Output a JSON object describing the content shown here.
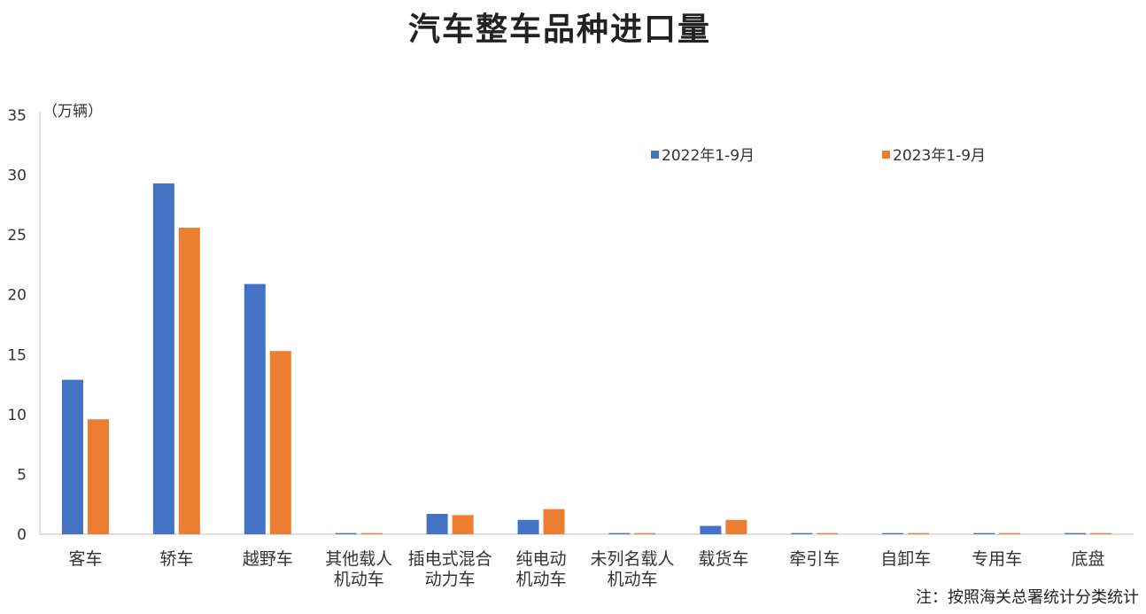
{
  "chart_data": {
    "type": "bar",
    "title": "汽车整车品种进口量",
    "ylabel": "（万辆）",
    "ylim": [
      0,
      35
    ],
    "yticks": [
      0,
      5,
      10,
      15,
      20,
      25,
      30,
      35
    ],
    "grid": false,
    "legend_position": "top-right",
    "categories": [
      [
        "客车"
      ],
      [
        "轿车"
      ],
      [
        "越野车"
      ],
      [
        "其他载人",
        "机动车"
      ],
      [
        "插电式混合",
        "动力车"
      ],
      [
        "纯电动",
        "机动车"
      ],
      [
        "未列名载人",
        "机动车"
      ],
      [
        "载货车"
      ],
      [
        "牵引车"
      ],
      [
        "自卸车"
      ],
      [
        "专用车"
      ],
      [
        "底盘"
      ]
    ],
    "series": [
      {
        "name": "2022年1-9月",
        "color": "#4472C4",
        "values": [
          12.9,
          29.3,
          20.9,
          0.1,
          1.7,
          1.2,
          0.1,
          0.7,
          0.1,
          0.1,
          0.1,
          0.1
        ]
      },
      {
        "name": "2023年1-9月",
        "color": "#ED7D31",
        "values": [
          9.6,
          25.6,
          15.3,
          0.1,
          1.6,
          2.1,
          0.1,
          1.2,
          0.1,
          0.1,
          0.1,
          0.1
        ]
      }
    ]
  },
  "note": "注：按照海关总署统计分类统计"
}
